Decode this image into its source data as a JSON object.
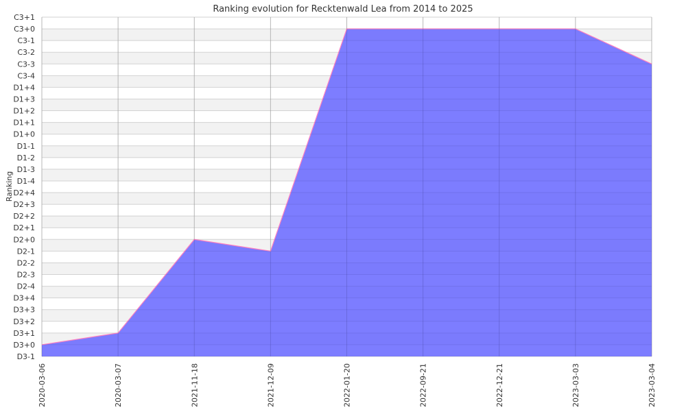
{
  "chart_data": {
    "type": "area",
    "title": "Ranking evolution for Recktenwald Lea from 2014 to 2025",
    "xlabel": "",
    "ylabel": "Ranking",
    "y_categories": [
      "D3-1",
      "D3+0",
      "D3+1",
      "D3+2",
      "D3+3",
      "D3+4",
      "D2-4",
      "D2-3",
      "D2-2",
      "D2-1",
      "D2+0",
      "D2+1",
      "D2+2",
      "D2+3",
      "D2+4",
      "D1-4",
      "D1-3",
      "D1-2",
      "D1-1",
      "D1+0",
      "D1+1",
      "D1+2",
      "D1+3",
      "D1+4",
      "C3-4",
      "C3-3",
      "C3-2",
      "C3-1",
      "C3+0",
      "C3+1"
    ],
    "x": [
      "2020-03-06",
      "2020-03-07",
      "2021-11-18",
      "2021-12-09",
      "2022-01-20",
      "2022-09-21",
      "2022-12-21",
      "2023-03-03",
      "2023-03-04"
    ],
    "series": [
      {
        "values": [
          "D3+0",
          "D3+1",
          "D2+0",
          "D2-1",
          "C3+0",
          "C3+0",
          "C3+0",
          "C3+0",
          "C3-3"
        ]
      }
    ],
    "grid": true,
    "colors": {
      "fill": "#6666ff",
      "line": "#ff7fbf",
      "band": "#f2f2f2",
      "grid": "#cccccc"
    }
  }
}
